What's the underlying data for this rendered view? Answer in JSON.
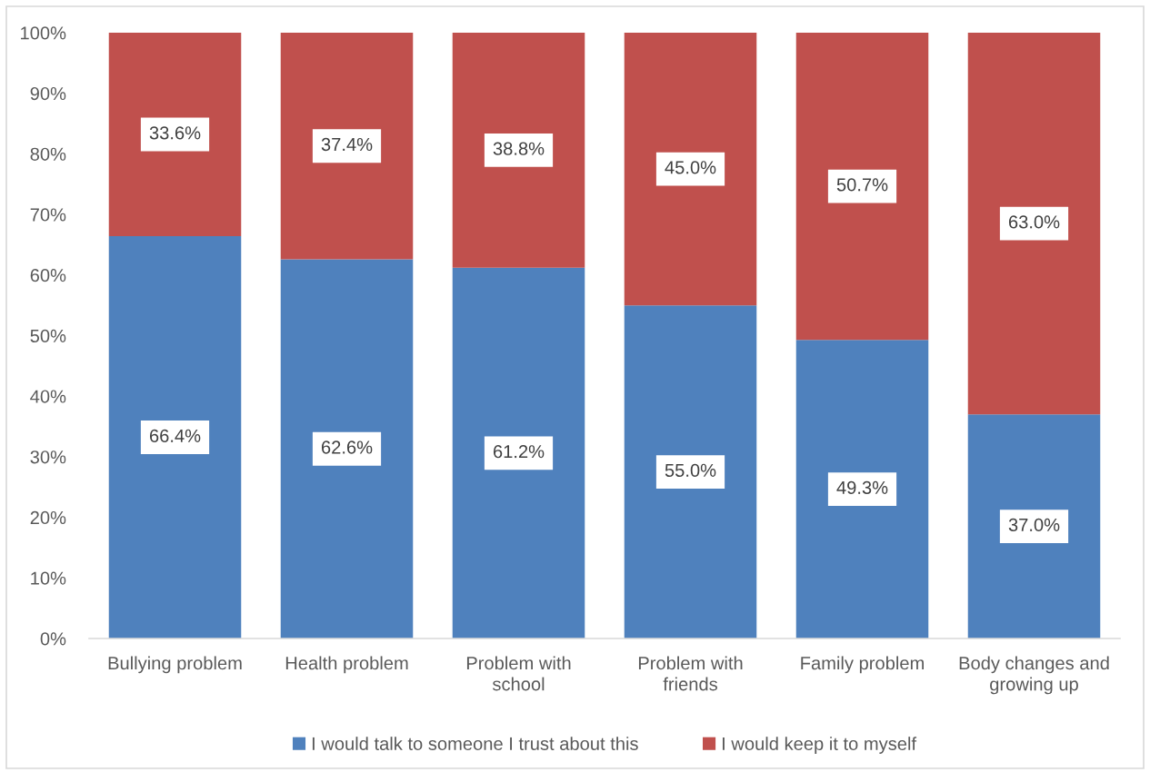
{
  "chart_data": {
    "type": "bar",
    "stacked": true,
    "categories": [
      "Bullying problem",
      "Health problem",
      "Problem with school",
      "Problem with friends",
      "Family problem",
      "Body changes and growing up"
    ],
    "series": [
      {
        "name": "I would talk to someone I trust about this",
        "color": "#4f81bd",
        "values": [
          66.4,
          62.6,
          61.2,
          55.0,
          49.3,
          37.0
        ],
        "value_labels": [
          "66.4%",
          "62.6%",
          "61.2%",
          "55.0%",
          "49.3%",
          "37.0%"
        ]
      },
      {
        "name": "I would keep it to myself",
        "color": "#c0504d",
        "values": [
          33.6,
          37.4,
          38.8,
          45.0,
          50.7,
          63.0
        ],
        "value_labels": [
          "33.6%",
          "37.4%",
          "38.8%",
          "45.0%",
          "50.7%",
          "63.0%"
        ]
      }
    ],
    "ylim": [
      0,
      100
    ],
    "yticks": [
      {
        "value": 0,
        "label": "0%"
      },
      {
        "value": 10,
        "label": "10%"
      },
      {
        "value": 20,
        "label": "20%"
      },
      {
        "value": 30,
        "label": "30%"
      },
      {
        "value": 40,
        "label": "40%"
      },
      {
        "value": 50,
        "label": "50%"
      },
      {
        "value": 60,
        "label": "60%"
      },
      {
        "value": 70,
        "label": "70%"
      },
      {
        "value": 80,
        "label": "80%"
      },
      {
        "value": 90,
        "label": "90%"
      },
      {
        "value": 100,
        "label": "100%"
      }
    ],
    "legend": "bottom"
  }
}
